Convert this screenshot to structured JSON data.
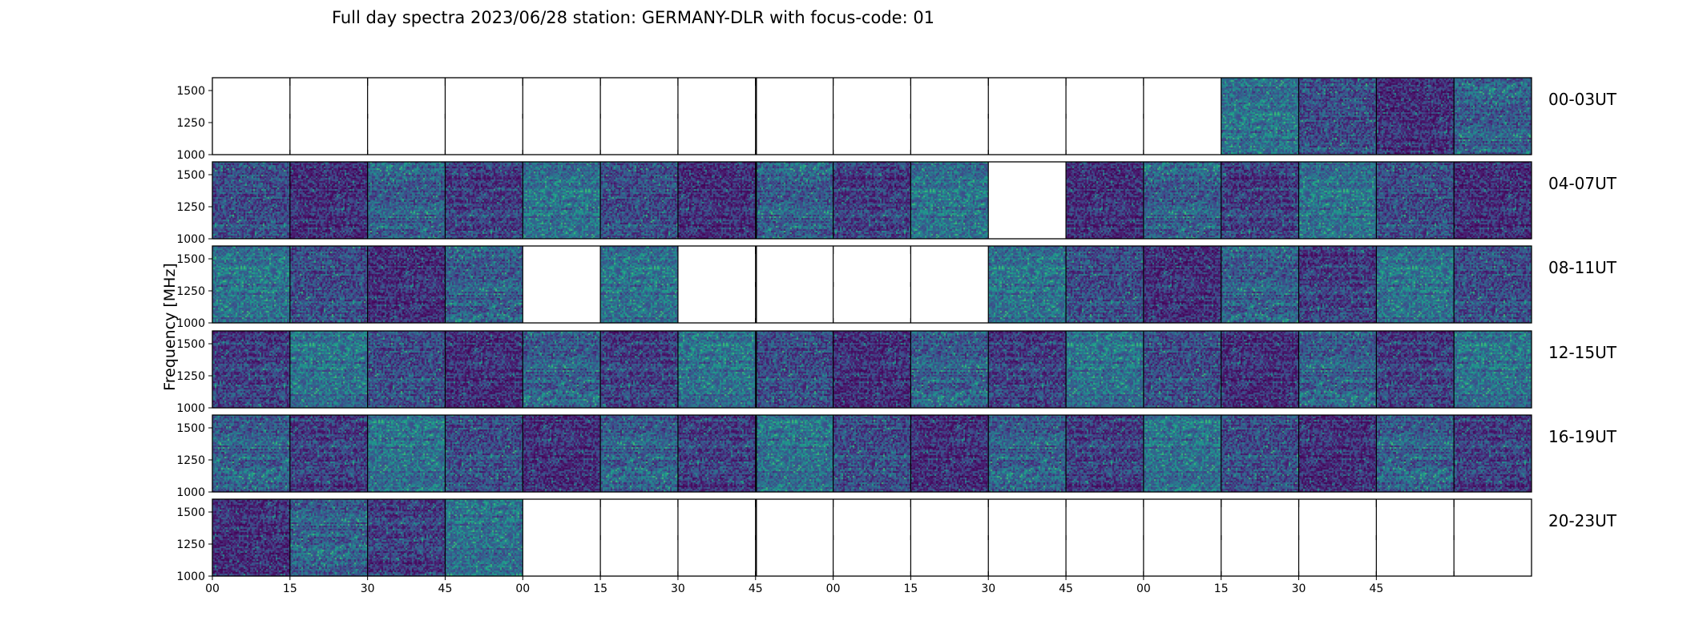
{
  "chart_data": {
    "type": "heatmap",
    "title": "Full day spectra 2023/06/28 station: GERMANY-DLR with focus-code: 01",
    "ylabel": "Frequency [MHz]",
    "xlabel": "",
    "y_ticks": [
      "1500",
      "1250",
      "1000"
    ],
    "y_tick_values": [
      1500,
      1250,
      1000
    ],
    "ylim": [
      1000,
      1600
    ],
    "x_ticks": [
      "00",
      "15",
      "30",
      "45",
      "00",
      "15",
      "30",
      "45",
      "00",
      "15",
      "30",
      "45",
      "00",
      "15",
      "30",
      "45"
    ],
    "panels": [
      {
        "label": "00-03UT",
        "filled": [
          0,
          0,
          0,
          0,
          0,
          0,
          0,
          0,
          0,
          0,
          0,
          0,
          0,
          1,
          1,
          1,
          1
        ]
      },
      {
        "label": "04-07UT",
        "filled": [
          1,
          1,
          1,
          1,
          1,
          1,
          1,
          1,
          1,
          1,
          0,
          1,
          1,
          1,
          1,
          1,
          1
        ]
      },
      {
        "label": "08-11UT",
        "filled": [
          1,
          1,
          1,
          1,
          0,
          1,
          0,
          0,
          0,
          0,
          1,
          1,
          1,
          1,
          1,
          1,
          1
        ]
      },
      {
        "label": "12-15UT",
        "filled": [
          1,
          1,
          1,
          1,
          1,
          1,
          1,
          1,
          1,
          1,
          1,
          1,
          1,
          1,
          1,
          1,
          1
        ]
      },
      {
        "label": "16-19UT",
        "filled": [
          1,
          1,
          1,
          1,
          1,
          1,
          1,
          1,
          1,
          1,
          1,
          1,
          1,
          1,
          1,
          1,
          1
        ]
      },
      {
        "label": "20-23UT",
        "filled": [
          1,
          1,
          1,
          1,
          0,
          0,
          0,
          0,
          0,
          0,
          0,
          0,
          0,
          0,
          0,
          0,
          0
        ]
      }
    ]
  }
}
